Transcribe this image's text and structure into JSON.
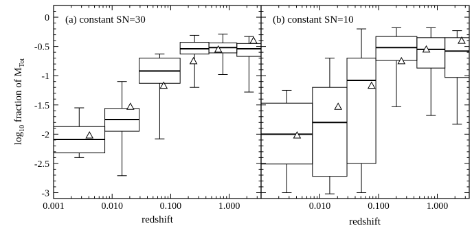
{
  "figure": {
    "ylabel_prefix": "log",
    "ylabel_sub": "10",
    "ylabel_main": " fraction of M",
    "ylabel_msub": "Tot",
    "xlabel": "redshift"
  },
  "chart_data": [
    {
      "type": "box",
      "title": "(a) constant SN=30",
      "xlabel": "redshift",
      "ylabel": "log10 fraction of M_Tot",
      "xscale": "log",
      "xlim": [
        0.001,
        3.5
      ],
      "ylim": [
        -3.1,
        0.2
      ],
      "xticks": [
        "0.001",
        "0.010",
        "0.100",
        "1.000"
      ],
      "yticks": [
        "0",
        "-0.5",
        "-1",
        "-1.5",
        "-2",
        "-2.5",
        "-3"
      ],
      "boxes": [
        {
          "x_lo": 0.001,
          "x_hi": 0.0075,
          "q1": -2.32,
          "median": -2.09,
          "q3": -1.87,
          "whisker_lo": -2.4,
          "whisker_hi": -1.55,
          "mean": -2.02,
          "x_mean": 0.0041
        },
        {
          "x_lo": 0.0075,
          "x_hi": 0.029,
          "q1": -1.95,
          "median": -1.75,
          "q3": -1.56,
          "whisker_lo": -2.71,
          "whisker_hi": -1.1,
          "mean": -1.53,
          "x_mean": 0.0205
        },
        {
          "x_lo": 0.029,
          "x_hi": 0.145,
          "q1": -1.13,
          "median": -0.92,
          "q3": -0.7,
          "whisker_lo": -2.08,
          "whisker_hi": -0.63,
          "mean": -1.17,
          "x_mean": 0.076
        },
        {
          "x_lo": 0.145,
          "x_hi": 0.45,
          "q1": -0.63,
          "median": -0.54,
          "q3": -0.43,
          "whisker_lo": -1.2,
          "whisker_hi": -0.31,
          "mean": -0.75,
          "x_mean": 0.245
        },
        {
          "x_lo": 0.45,
          "x_hi": 1.35,
          "q1": -0.61,
          "median": -0.52,
          "q3": -0.44,
          "whisker_lo": -0.98,
          "whisker_hi": -0.29,
          "mean": -0.55,
          "x_mean": 0.65
        },
        {
          "x_lo": 1.35,
          "x_hi": 3.5,
          "q1": -0.67,
          "median": -0.54,
          "q3": -0.45,
          "whisker_lo": -1.28,
          "whisker_hi": -0.33,
          "mean": -0.4,
          "x_mean": 2.6
        }
      ]
    },
    {
      "type": "box",
      "title": "(b) constant SN=10",
      "xlabel": "redshift",
      "ylabel": "",
      "xscale": "log",
      "xlim": [
        0.001,
        3.5
      ],
      "ylim": [
        -3.1,
        0.2
      ],
      "xticks": [
        "0.010",
        "0.100",
        "1.000"
      ],
      "yticks": [],
      "boxes": [
        {
          "x_lo": 0.001,
          "x_hi": 0.0075,
          "q1": -2.51,
          "median": -2.0,
          "q3": -1.47,
          "whisker_lo": -3.0,
          "whisker_hi": -1.25,
          "mean": -2.02,
          "x_mean": 0.0041
        },
        {
          "x_lo": 0.0075,
          "x_hi": 0.029,
          "q1": -2.72,
          "median": -1.8,
          "q3": -1.2,
          "whisker_lo": -3.02,
          "whisker_hi": -0.7,
          "mean": -1.53,
          "x_mean": 0.0205
        },
        {
          "x_lo": 0.029,
          "x_hi": 0.09,
          "q1": -2.5,
          "median": -1.08,
          "q3": -0.7,
          "whisker_lo": -3.0,
          "whisker_hi": -0.2,
          "mean": -1.17,
          "x_mean": 0.076
        },
        {
          "x_lo": 0.09,
          "x_hi": 0.45,
          "q1": -0.74,
          "median": -0.52,
          "q3": -0.33,
          "whisker_lo": -1.53,
          "whisker_hi": -0.18,
          "mean": -0.75,
          "x_mean": 0.245
        },
        {
          "x_lo": 0.45,
          "x_hi": 1.35,
          "q1": -0.87,
          "median": -0.55,
          "q3": -0.35,
          "whisker_lo": -1.68,
          "whisker_hi": -0.18,
          "mean": -0.55,
          "x_mean": 0.65
        },
        {
          "x_lo": 1.35,
          "x_hi": 3.5,
          "q1": -1.03,
          "median": -0.58,
          "q3": -0.35,
          "whisker_lo": -1.83,
          "whisker_hi": -0.23,
          "mean": -0.4,
          "x_mean": 2.6
        }
      ]
    }
  ]
}
